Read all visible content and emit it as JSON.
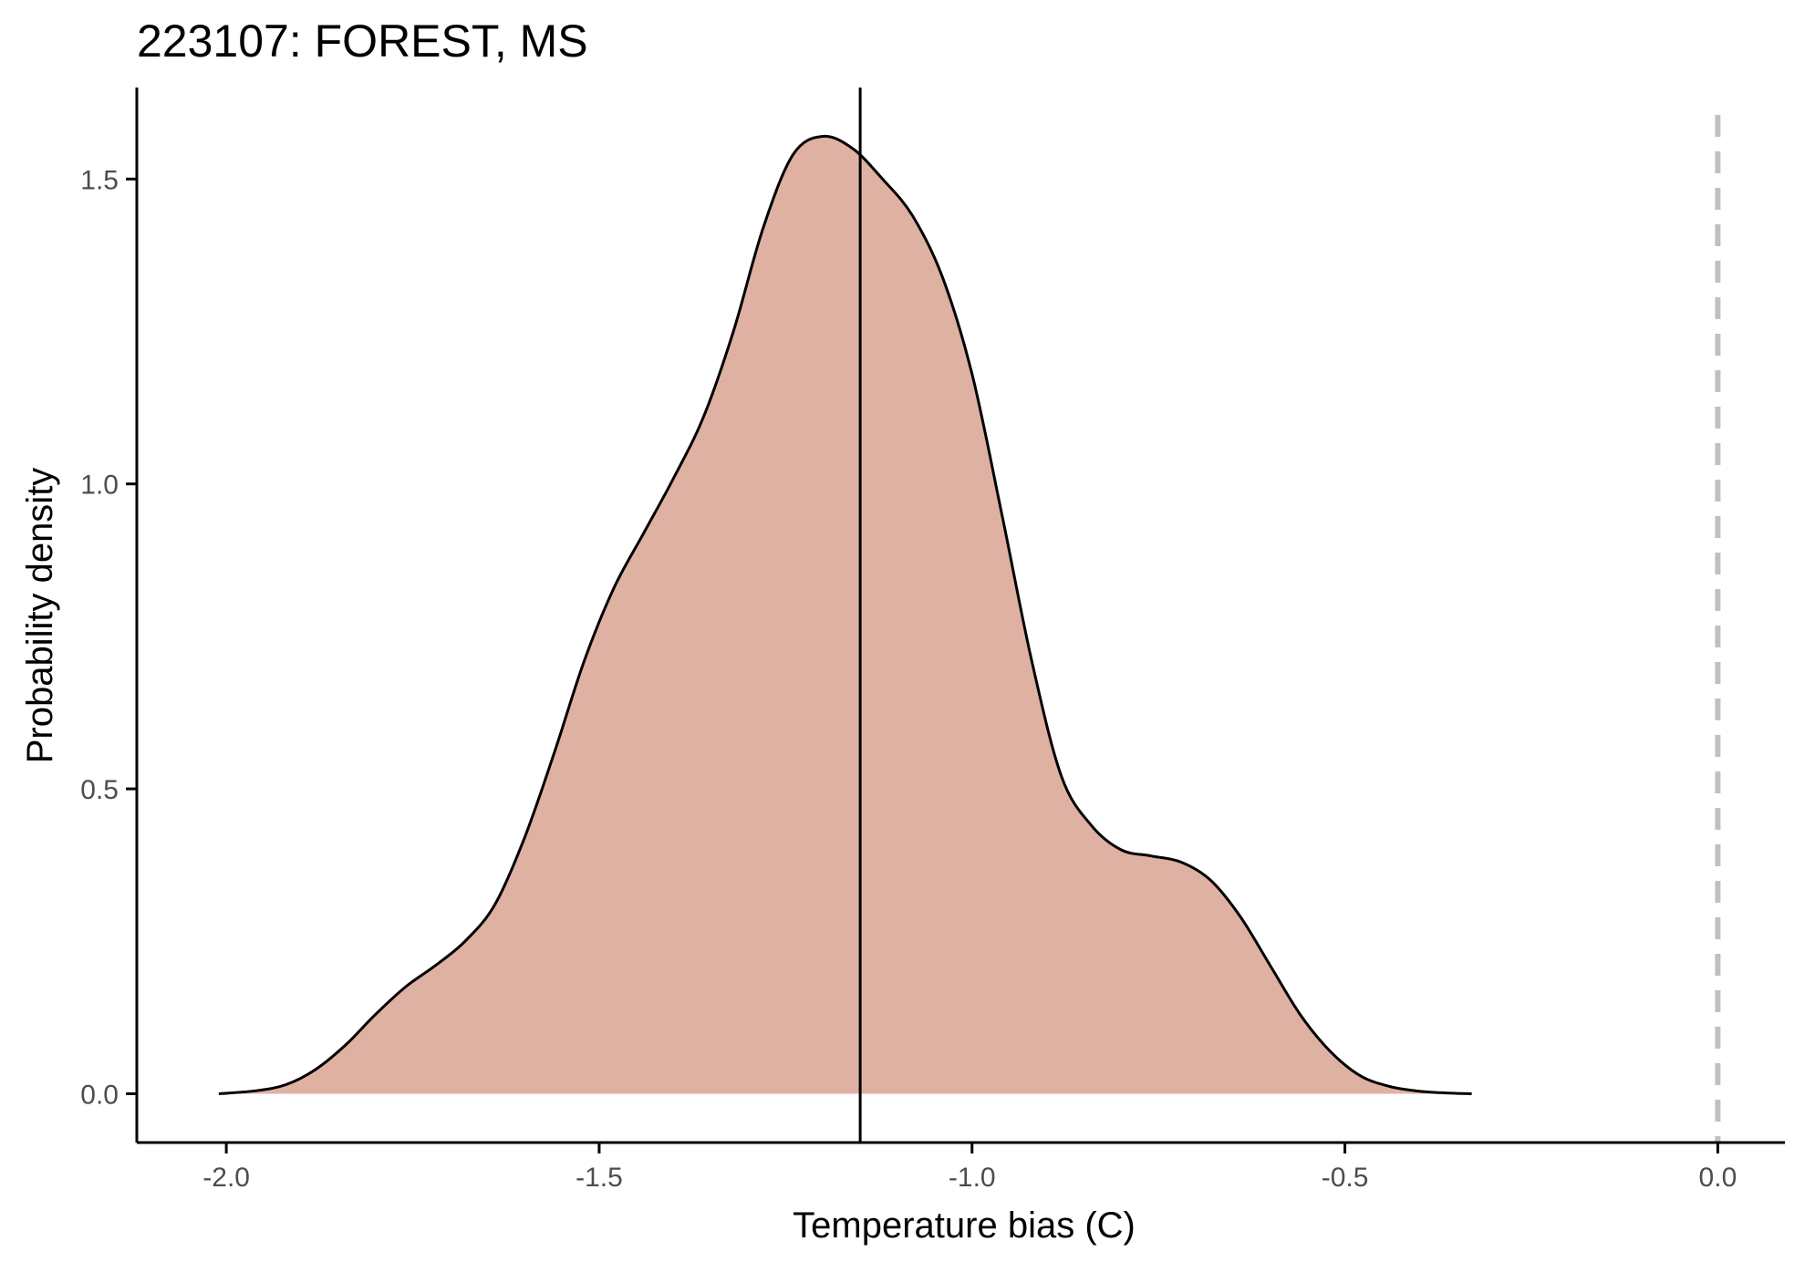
{
  "chart_data": {
    "type": "area",
    "title": "223107: FOREST, MS",
    "xlabel": "Temperature bias (C)",
    "ylabel": "Probability density",
    "xlim": [
      -2.12,
      0.09
    ],
    "ylim": [
      -0.08,
      1.65
    ],
    "x_ticks": [
      -2.0,
      -1.5,
      -1.0,
      -0.5,
      0.0
    ],
    "x_tick_labels": [
      "-2.0",
      "-1.5",
      "-1.0",
      "-0.5",
      "0.0"
    ],
    "y_ticks": [
      0.0,
      0.5,
      1.0,
      1.5
    ],
    "y_tick_labels": [
      "0.0",
      "0.5",
      "1.0",
      "1.5"
    ],
    "grid": false,
    "fill_color": "#dfb1a3",
    "line_color": "#000000",
    "reference_line_color": "#c0c0c0",
    "mean_line_x": -1.15,
    "reference_line_x": 0.0,
    "series": [
      {
        "x": [
          -2.01,
          -1.96,
          -1.92,
          -1.88,
          -1.84,
          -1.8,
          -1.76,
          -1.72,
          -1.68,
          -1.64,
          -1.6,
          -1.56,
          -1.52,
          -1.48,
          -1.44,
          -1.4,
          -1.36,
          -1.32,
          -1.28,
          -1.24,
          -1.2,
          -1.16,
          -1.12,
          -1.08,
          -1.04,
          -1.0,
          -0.96,
          -0.92,
          -0.88,
          -0.84,
          -0.8,
          -0.76,
          -0.72,
          -0.68,
          -0.64,
          -0.6,
          -0.56,
          -0.52,
          -0.48,
          -0.44,
          -0.4,
          -0.36,
          -0.33
        ],
        "y": [
          0.0,
          0.005,
          0.015,
          0.04,
          0.08,
          0.13,
          0.175,
          0.21,
          0.25,
          0.31,
          0.42,
          0.56,
          0.71,
          0.83,
          0.92,
          1.01,
          1.11,
          1.25,
          1.42,
          1.54,
          1.57,
          1.55,
          1.5,
          1.44,
          1.34,
          1.18,
          0.95,
          0.71,
          0.52,
          0.44,
          0.4,
          0.39,
          0.38,
          0.35,
          0.29,
          0.21,
          0.13,
          0.07,
          0.03,
          0.012,
          0.004,
          0.001,
          0.0
        ]
      }
    ]
  }
}
